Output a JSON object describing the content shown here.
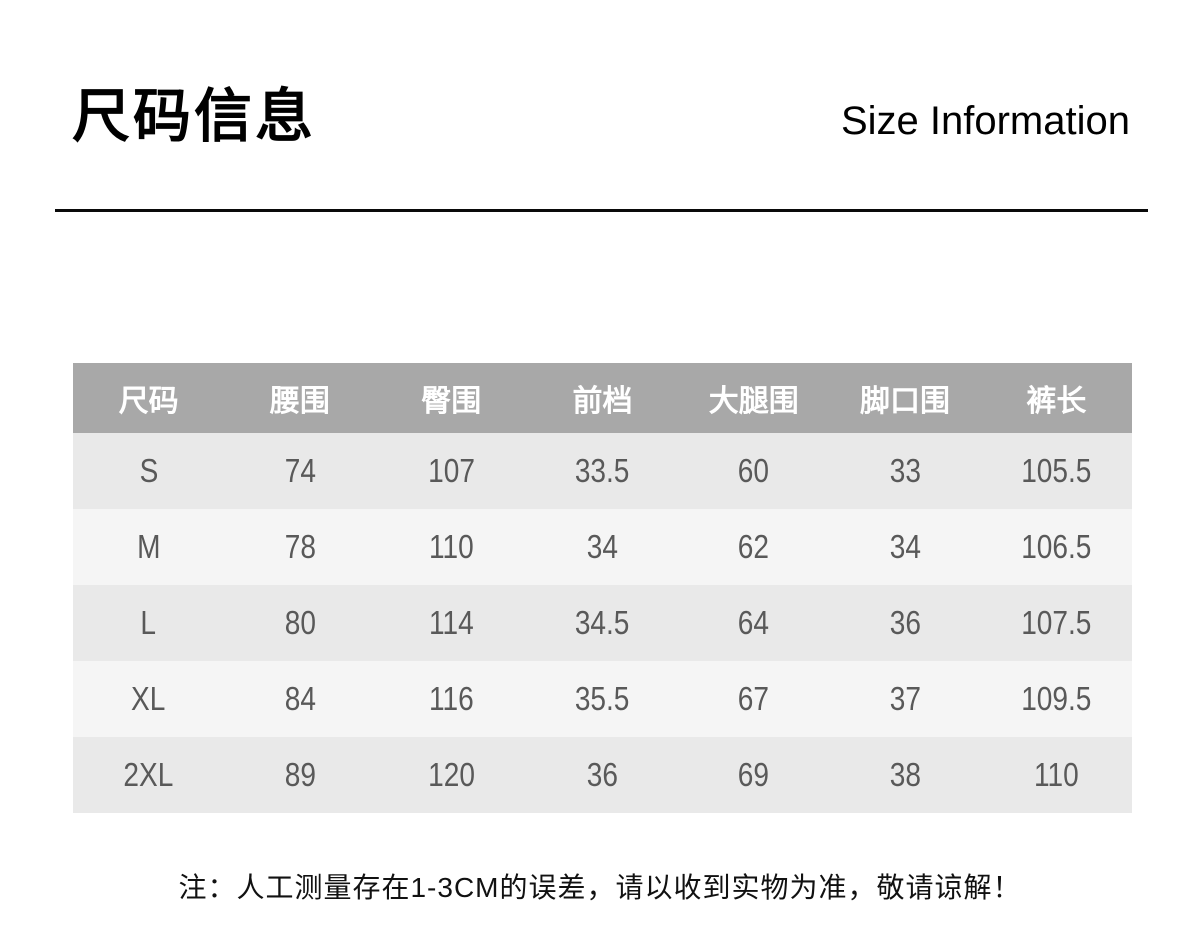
{
  "header": {
    "title_cn": "尺码信息",
    "title_en": "Size Information"
  },
  "size_table": {
    "headers": [
      "尺码",
      "腰围",
      "臀围",
      "前档",
      "大腿围",
      "脚口围",
      "裤长"
    ],
    "rows": [
      [
        "S",
        "74",
        "107",
        "33.5",
        "60",
        "33",
        "105.5"
      ],
      [
        "M",
        "78",
        "110",
        "34",
        "62",
        "34",
        "106.5"
      ],
      [
        "L",
        "80",
        "114",
        "34.5",
        "64",
        "36",
        "107.5"
      ],
      [
        "XL",
        "84",
        "116",
        "35.5",
        "67",
        "37",
        "109.5"
      ],
      [
        "2XL",
        "89",
        "120",
        "36",
        "69",
        "38",
        "110"
      ]
    ]
  },
  "footer": {
    "note": "注：人工测量存在1-3CM的误差，请以收到实物为准，敬请谅解！"
  },
  "colors": {
    "header_bg": "#a8a8a8",
    "header_text": "#ffffff",
    "row_odd_bg": "#e9e9e9",
    "row_even_bg": "#f5f5f5",
    "cell_text": "#595959",
    "title_text": "#000000",
    "divider": "#0a0a0a",
    "note_text": "#111111"
  }
}
